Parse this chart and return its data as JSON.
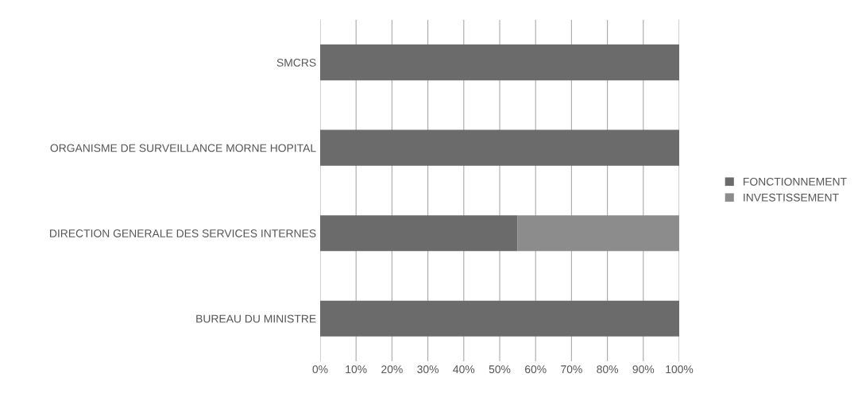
{
  "chart_data": {
    "type": "bar",
    "orientation": "horizontal",
    "stacked": true,
    "categories": [
      "SMCRS",
      "ORGANISME DE SURVEILLANCE MORNE HOPITAL",
      "DIRECTION GENERALE DES SERVICES INTERNES",
      "BUREAU DU MINISTRE"
    ],
    "series": [
      {
        "name": "FONCTIONNEMENT",
        "color": "#6b6b6b",
        "values": [
          100,
          100,
          55,
          100
        ]
      },
      {
        "name": "INVESTISSEMENT",
        "color": "#8c8c8c",
        "values": [
          0,
          0,
          45,
          0
        ]
      }
    ],
    "xlim": [
      0,
      100
    ],
    "xticks": [
      {
        "value": 0,
        "label": "0%"
      },
      {
        "value": 10,
        "label": "10%"
      },
      {
        "value": 20,
        "label": "20%"
      },
      {
        "value": 30,
        "label": "30%"
      },
      {
        "value": 40,
        "label": "40%"
      },
      {
        "value": 50,
        "label": "50%"
      },
      {
        "value": 60,
        "label": "60%"
      },
      {
        "value": 70,
        "label": "70%"
      },
      {
        "value": 80,
        "label": "80%"
      },
      {
        "value": 90,
        "label": "90%"
      },
      {
        "value": 100,
        "label": "100%"
      }
    ],
    "grid": "x",
    "legend": "right"
  }
}
